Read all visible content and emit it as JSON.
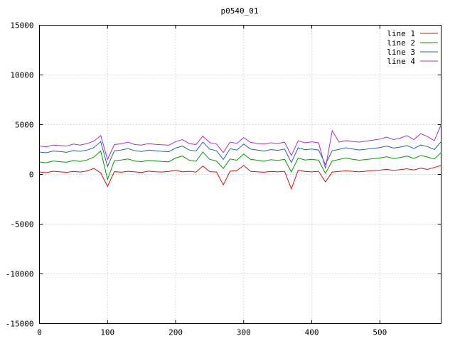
{
  "chart_data": {
    "type": "line",
    "title": "p0540_01",
    "xlabel": "",
    "ylabel": "",
    "xlim": [
      0,
      590
    ],
    "ylim": [
      -15000,
      15000
    ],
    "xticks": [
      0,
      100,
      200,
      300,
      400,
      500
    ],
    "yticks": [
      -15000,
      -10000,
      -5000,
      0,
      5000,
      10000,
      15000
    ],
    "grid": true,
    "grid_style": "dotted",
    "legend_position": "top-right-inside",
    "background_color": "#ffffff",
    "border_color": "#000000",
    "grid_color": "#b8b8b8",
    "x": [
      0,
      10,
      20,
      30,
      40,
      50,
      60,
      70,
      80,
      90,
      100,
      110,
      120,
      130,
      140,
      150,
      160,
      170,
      180,
      190,
      200,
      210,
      220,
      230,
      240,
      250,
      260,
      270,
      280,
      290,
      300,
      310,
      320,
      330,
      340,
      350,
      360,
      370,
      380,
      390,
      400,
      410,
      420,
      430,
      440,
      450,
      460,
      470,
      480,
      490,
      500,
      510,
      520,
      530,
      540,
      550,
      560,
      570,
      580,
      590
    ],
    "series": [
      {
        "name": "line 1",
        "color": "#e01010",
        "values": [
          250,
          180,
          320,
          260,
          210,
          300,
          240,
          350,
          600,
          150,
          -1200,
          280,
          220,
          310,
          260,
          200,
          330,
          270,
          240,
          300,
          420,
          260,
          310,
          230,
          850,
          280,
          240,
          -1050,
          320,
          380,
          900,
          310,
          260,
          220,
          300,
          260,
          310,
          -1450,
          420,
          300,
          260,
          310,
          -750,
          230,
          300,
          360,
          310,
          260,
          330,
          380,
          430,
          520,
          400,
          480,
          560,
          450,
          620,
          500,
          700,
          900
        ]
      },
      {
        "name": "line 2",
        "color": "#00a000",
        "values": [
          1250,
          1180,
          1350,
          1280,
          1220,
          1400,
          1300,
          1450,
          1750,
          2350,
          -500,
          1380,
          1450,
          1550,
          1350,
          1280,
          1420,
          1360,
          1300,
          1260,
          1650,
          1850,
          1420,
          1320,
          2250,
          1520,
          1340,
          600,
          1550,
          1430,
          2050,
          1520,
          1430,
          1330,
          1480,
          1400,
          1520,
          250,
          1650,
          1450,
          1520,
          1430,
          100,
          1350,
          1500,
          1650,
          1520,
          1430,
          1500,
          1580,
          1650,
          1780,
          1600,
          1700,
          1850,
          1600,
          1900,
          1750,
          1550,
          2200
        ]
      },
      {
        "name": "line 3",
        "color": "#2060d0",
        "values": [
          2250,
          2180,
          2350,
          2300,
          2220,
          2400,
          2320,
          2450,
          2700,
          3300,
          800,
          2380,
          2450,
          2600,
          2380,
          2300,
          2450,
          2380,
          2320,
          2280,
          2650,
          2850,
          2450,
          2350,
          3250,
          2550,
          2380,
          1500,
          2580,
          2450,
          3050,
          2550,
          2450,
          2350,
          2500,
          2420,
          2550,
          1200,
          2680,
          2480,
          2550,
          2450,
          1000,
          2380,
          2520,
          2680,
          2550,
          2460,
          2540,
          2620,
          2700,
          2850,
          2650,
          2750,
          2900,
          2600,
          2950,
          2800,
          2500,
          3300
        ]
      },
      {
        "name": "line 4",
        "color": "#a830e0",
        "values": [
          2850,
          2780,
          2950,
          2900,
          2850,
          3050,
          2950,
          3100,
          3350,
          3900,
          1500,
          3000,
          3080,
          3250,
          3000,
          2950,
          3100,
          3020,
          2980,
          2940,
          3300,
          3500,
          3100,
          3000,
          3850,
          3200,
          3050,
          2200,
          3250,
          3120,
          3700,
          3220,
          3120,
          3050,
          3180,
          3100,
          3250,
          1900,
          3380,
          3180,
          3280,
          3180,
          600,
          4400,
          3250,
          3400,
          3300,
          3250,
          3350,
          3450,
          3550,
          3750,
          3500,
          3650,
          3900,
          3500,
          4100,
          3800,
          3400,
          5000
        ]
      }
    ]
  }
}
